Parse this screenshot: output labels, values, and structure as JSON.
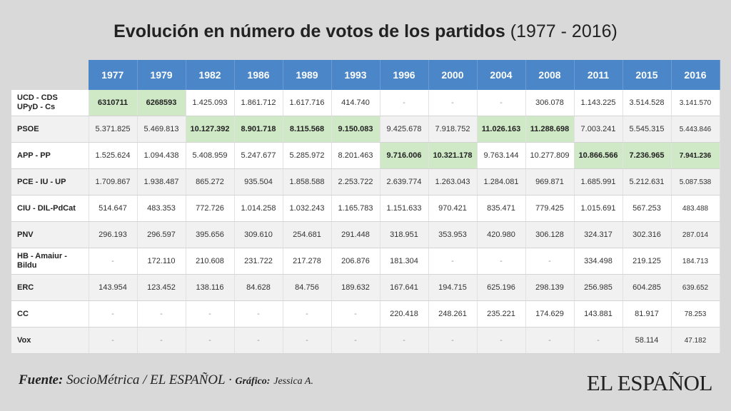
{
  "title": {
    "main": "Evolución en número de votos de los partidos",
    "range": "(1977 - 2016)"
  },
  "chart_data": {
    "type": "table",
    "title": "Evolución en número de votos de los partidos (1977 - 2016)",
    "columns": [
      "1977",
      "1979",
      "1982",
      "1986",
      "1989",
      "1993",
      "1996",
      "2000",
      "2004",
      "2008",
      "2011",
      "2015",
      "2016"
    ],
    "rows": [
      {
        "party": "UCD - CDS\nUPyD - Cs",
        "values": [
          "6310711",
          "6268593",
          "1.425.093",
          "1.861.712",
          "1.617.716",
          "414.740",
          "-",
          "-",
          "-",
          "306.078",
          "1.143.225",
          "3.514.528",
          "3.141.570"
        ],
        "highlight": [
          0,
          1
        ]
      },
      {
        "party": "PSOE",
        "values": [
          "5.371.825",
          "5.469.813",
          "10.127.392",
          "8.901.718",
          "8.115.568",
          "9.150.083",
          "9.425.678",
          "7.918.752",
          "11.026.163",
          "11.288.698",
          "7.003.241",
          "5.545.315",
          "5.443.846"
        ],
        "highlight": [
          2,
          3,
          4,
          5,
          8,
          9
        ]
      },
      {
        "party": "APP - PP",
        "values": [
          "1.525.624",
          "1.094.438",
          "5.408.959",
          "5.247.677",
          "5.285.972",
          "8.201.463",
          "9.716.006",
          "10.321.178",
          "9.763.144",
          "10.277.809",
          "10.866.566",
          "7.236.965",
          "7.941.236"
        ],
        "highlight": [
          6,
          7,
          10,
          11,
          12
        ]
      },
      {
        "party": "PCE - IU - UP",
        "values": [
          "1.709.867",
          "1.938.487",
          "865.272",
          "935.504",
          "1.858.588",
          "2.253.722",
          "2.639.774",
          "1.263.043",
          "1.284.081",
          "969.871",
          "1.685.991",
          "5.212.631",
          "5.087.538"
        ],
        "highlight": []
      },
      {
        "party": "CIU - DIL-PdCat",
        "values": [
          "514.647",
          "483.353",
          "772.726",
          "1.014.258",
          "1.032.243",
          "1.165.783",
          "1.151.633",
          "970.421",
          "835.471",
          "779.425",
          "1.015.691",
          "567.253",
          "483.488"
        ],
        "highlight": []
      },
      {
        "party": "PNV",
        "values": [
          "296.193",
          "296.597",
          "395.656",
          "309.610",
          "254.681",
          "291.448",
          "318.951",
          "353.953",
          "420.980",
          "306.128",
          "324.317",
          "302.316",
          "287.014"
        ],
        "highlight": []
      },
      {
        "party": "HB - Amaiur -\nBildu",
        "values": [
          "-",
          "172.110",
          "210.608",
          "231.722",
          "217.278",
          "206.876",
          "181.304",
          "-",
          "-",
          "-",
          "334.498",
          "219.125",
          "184.713"
        ],
        "highlight": []
      },
      {
        "party": "ERC",
        "values": [
          "143.954",
          "123.452",
          "138.116",
          "84.628",
          "84.756",
          "189.632",
          "167.641",
          "194.715",
          "625.196",
          "298.139",
          "256.985",
          "604.285",
          "639.652"
        ],
        "highlight": []
      },
      {
        "party": "CC",
        "values": [
          "-",
          "-",
          "-",
          "-",
          "-",
          "-",
          "220.418",
          "248.261",
          "235.221",
          "174.629",
          "143.881",
          "81.917",
          "78.253"
        ],
        "highlight": []
      },
      {
        "party": "Vox",
        "values": [
          "-",
          "-",
          "-",
          "-",
          "-",
          "-",
          "-",
          "-",
          "-",
          "-",
          "-",
          "58.114",
          "47.182"
        ],
        "highlight": []
      }
    ]
  },
  "footer": {
    "source_label": "Fuente:",
    "source_text": "SocioMétrica / EL ESPAÑOL ·",
    "graphic_label": "Gráfico:",
    "graphic_author": "Jessica A.",
    "logo": "EL ESPAÑOL"
  },
  "colors": {
    "header": "#4a86c8",
    "highlight": "#cfe8c6",
    "background": "#d9d9d9"
  }
}
